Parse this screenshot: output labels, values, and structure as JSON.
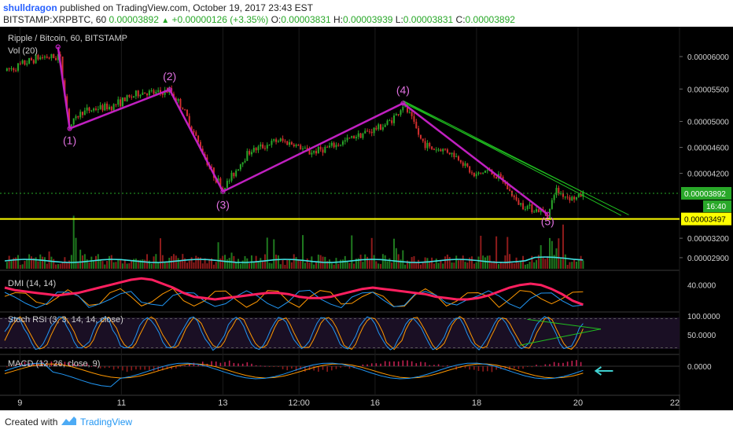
{
  "header": {
    "author": "shulldragon",
    "published_text": "published on TradingView.com, October 19, 2017 23:43 EST",
    "symbol_text": "BITSTAMP:XRPBTC, 60",
    "last": "0.00003892",
    "change": "+0.00000126 (+3.35%)",
    "o_label": "O:",
    "o_value": "0.00003831",
    "h_label": "H:",
    "h_value": "0.00003939",
    "l_label": "L:",
    "l_value": "0.00003831",
    "c_label": "C:",
    "c_value": "0.00003892"
  },
  "footer": {
    "created_with": "Created with",
    "brand": "TradingView"
  },
  "colors": {
    "background": "#000000",
    "up": "#29a829",
    "down": "#d32f2f",
    "wave": "#c020c0",
    "wave_label": "#e070e0",
    "support": "#ffff00",
    "trend": "#20c020",
    "dmi_adx": "#ff1f5f",
    "plus_di": "#ff9800",
    "minus_di": "#2196f3",
    "macd": "#2196f3",
    "signal": "#ff9800",
    "vol_ma": "#40e0e0",
    "arrow": "#40d0d0"
  },
  "chart_data": {
    "type": "candlestick",
    "title": "Ripple / Bitcoin, 60, BITSTAMP",
    "symbol": "BITSTAMP:XRPBTC",
    "interval": "60",
    "volume_label": "Vol (20)",
    "price_axis": {
      "ticks": [
        "0.00006000",
        "0.00005500",
        "0.00005000",
        "0.00004600",
        "0.00004200",
        "0.00003200",
        "0.00002900"
      ],
      "tick_values": [
        6e-05,
        5.5e-05,
        5e-05,
        4.6e-05,
        4.2e-05,
        3.2e-05,
        2.9e-05
      ]
    },
    "last_price_tag": "0.00003892",
    "countdown_tag": "16:40",
    "support_level": {
      "value": 3.497e-05,
      "label": "0.00003497"
    },
    "x_ticks": [
      "9",
      "11",
      "13",
      "12:00",
      "16",
      "18",
      "20",
      "22"
    ],
    "wave_labels": [
      "(1)",
      "(2)",
      "(3)",
      "(4)",
      "(5)"
    ],
    "waves": [
      {
        "label": "(1)",
        "day": 9.98,
        "price": 4.89e-05
      },
      {
        "label": "(2)",
        "day": 11.95,
        "price": 5.49e-05
      },
      {
        "label": "(3)",
        "day": 13.0,
        "price": 3.92e-05
      },
      {
        "label": "(4)",
        "day": 16.55,
        "price": 5.28e-05
      },
      {
        "label": "(5)",
        "day": 19.4,
        "price": 3.57e-05
      }
    ],
    "wave_start": {
      "day": 9.75,
      "price": 6.15e-05
    },
    "price_path": [
      [
        8.7,
        5.78e-05
      ],
      [
        8.9,
        5.83e-05
      ],
      [
        9.1,
        5.9e-05
      ],
      [
        9.3,
        5.97e-05
      ],
      [
        9.5,
        6e-05
      ],
      [
        9.7,
        5.98e-05
      ],
      [
        9.78,
        6.05e-05
      ],
      [
        9.85,
        5.6e-05
      ],
      [
        9.98,
        4.92e-05
      ],
      [
        10.2,
        5.14e-05
      ],
      [
        10.5,
        5.2e-05
      ],
      [
        10.8,
        5.23e-05
      ],
      [
        11.1,
        5.35e-05
      ],
      [
        11.4,
        5.45e-05
      ],
      [
        11.7,
        5.43e-05
      ],
      [
        11.95,
        5.47e-05
      ],
      [
        12.2,
        5.22e-05
      ],
      [
        12.5,
        4.7e-05
      ],
      [
        12.8,
        4.2e-05
      ],
      [
        13.0,
        3.96e-05
      ],
      [
        13.2,
        4.18e-05
      ],
      [
        13.5,
        4.53e-05
      ],
      [
        13.8,
        4.62e-05
      ],
      [
        14.1,
        4.71e-05
      ],
      [
        14.4,
        4.65e-05
      ],
      [
        14.7,
        4.52e-05
      ],
      [
        15.0,
        4.58e-05
      ],
      [
        15.3,
        4.65e-05
      ],
      [
        15.6,
        4.78e-05
      ],
      [
        15.9,
        4.85e-05
      ],
      [
        16.2,
        4.95e-05
      ],
      [
        16.45,
        5.12e-05
      ],
      [
        16.55,
        5.25e-05
      ],
      [
        16.7,
        5.08e-05
      ],
      [
        16.9,
        4.72e-05
      ],
      [
        17.1,
        4.58e-05
      ],
      [
        17.4,
        4.56e-05
      ],
      [
        17.7,
        4.4e-05
      ],
      [
        17.95,
        4.15e-05
      ],
      [
        18.2,
        4.25e-05
      ],
      [
        18.5,
        4.1e-05
      ],
      [
        18.8,
        3.75e-05
      ],
      [
        19.1,
        3.66e-05
      ],
      [
        19.3,
        3.6e-05
      ],
      [
        19.42,
        3.57e-05
      ],
      [
        19.55,
        3.95e-05
      ],
      [
        19.75,
        3.85e-05
      ],
      [
        19.95,
        3.81e-05
      ],
      [
        20.1,
        3.89e-05
      ]
    ],
    "trend_lines": [
      {
        "from": [
          16.55,
          5.29e-05
        ],
        "to": [
          21.0,
          3.56e-05
        ]
      },
      {
        "from": [
          16.55,
          5.31e-05
        ],
        "to": [
          20.85,
          3.55e-05
        ]
      },
      {
        "from": [
          16.55,
          5.32e-05
        ],
        "to": [
          20.1,
          3.91e-05
        ]
      }
    ],
    "panels": {
      "dmi": {
        "label": "DMI (14, 14)",
        "ticks": [
          "40.0000"
        ],
        "adx": [
          38,
          36,
          35,
          34,
          33,
          32,
          33,
          34,
          36,
          38,
          40,
          42,
          44,
          45,
          44,
          41,
          38,
          34,
          31,
          30,
          29,
          30,
          31,
          32,
          33,
          34,
          34,
          33,
          31,
          30,
          30,
          31,
          33,
          35,
          37,
          38,
          37,
          36,
          35,
          34,
          33,
          31,
          30,
          29,
          29,
          30,
          32,
          35,
          38,
          40,
          41,
          40,
          37,
          33,
          28,
          25
        ]
      },
      "stoch_rsi": {
        "label": "Stoch RSI (3, 3, 14, 14, close)",
        "ticks": [
          "100.0000",
          "50.0000"
        ],
        "wedge_from": [
          19.0,
          90
        ],
        "wedge_to": [
          20.45,
          62
        ],
        "wedge_base": [
          18.85,
          15
        ]
      },
      "macd": {
        "label": "MACD (12, 26, close, 9)",
        "ticks": [
          "0.0000"
        ]
      }
    }
  }
}
